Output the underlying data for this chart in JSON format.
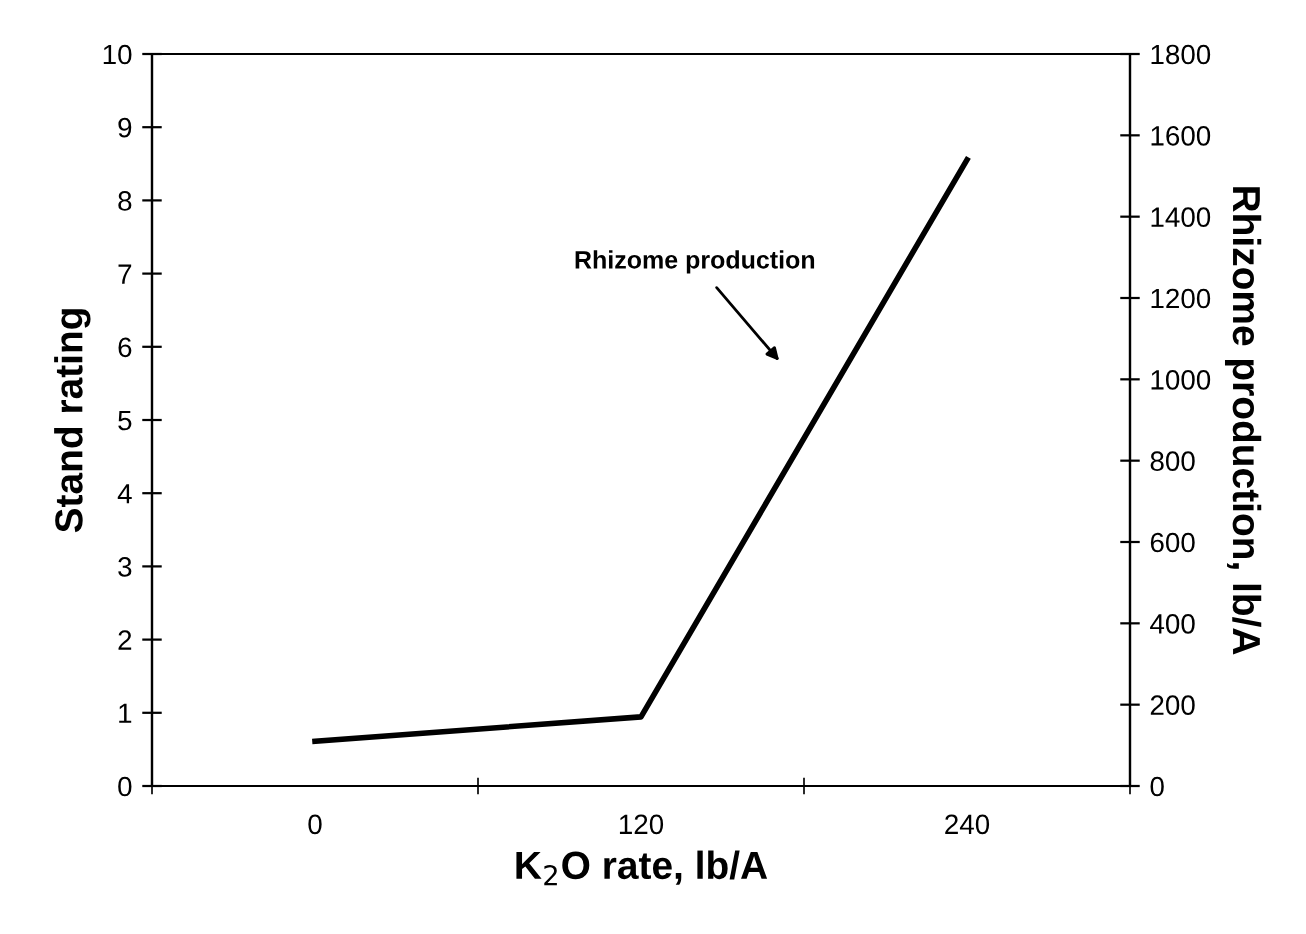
{
  "chart_data": {
    "type": "line",
    "xlabel": "K$_{2}$O rate, lb/A",
    "ylabel": "Stand rating",
    "y2label": "Rhizome production, lb/A",
    "categories": [
      "0",
      "120",
      "240"
    ],
    "series": [
      {
        "color": "#000000",
        "axis": "y2",
        "values": [
          110,
          170,
          1540
        ]
      }
    ],
    "ylim": [
      0,
      10
    ],
    "yticks": [
      0,
      1,
      2,
      3,
      4,
      5,
      6,
      7,
      8,
      9,
      10
    ],
    "y2lim": [
      0,
      1800
    ],
    "y2ticks": [
      0,
      200,
      400,
      600,
      800,
      1000,
      1200,
      1400,
      1600,
      1800
    ],
    "annotations": [
      "Rhizome production"
    ],
    "grid": false,
    "legend": false
  }
}
